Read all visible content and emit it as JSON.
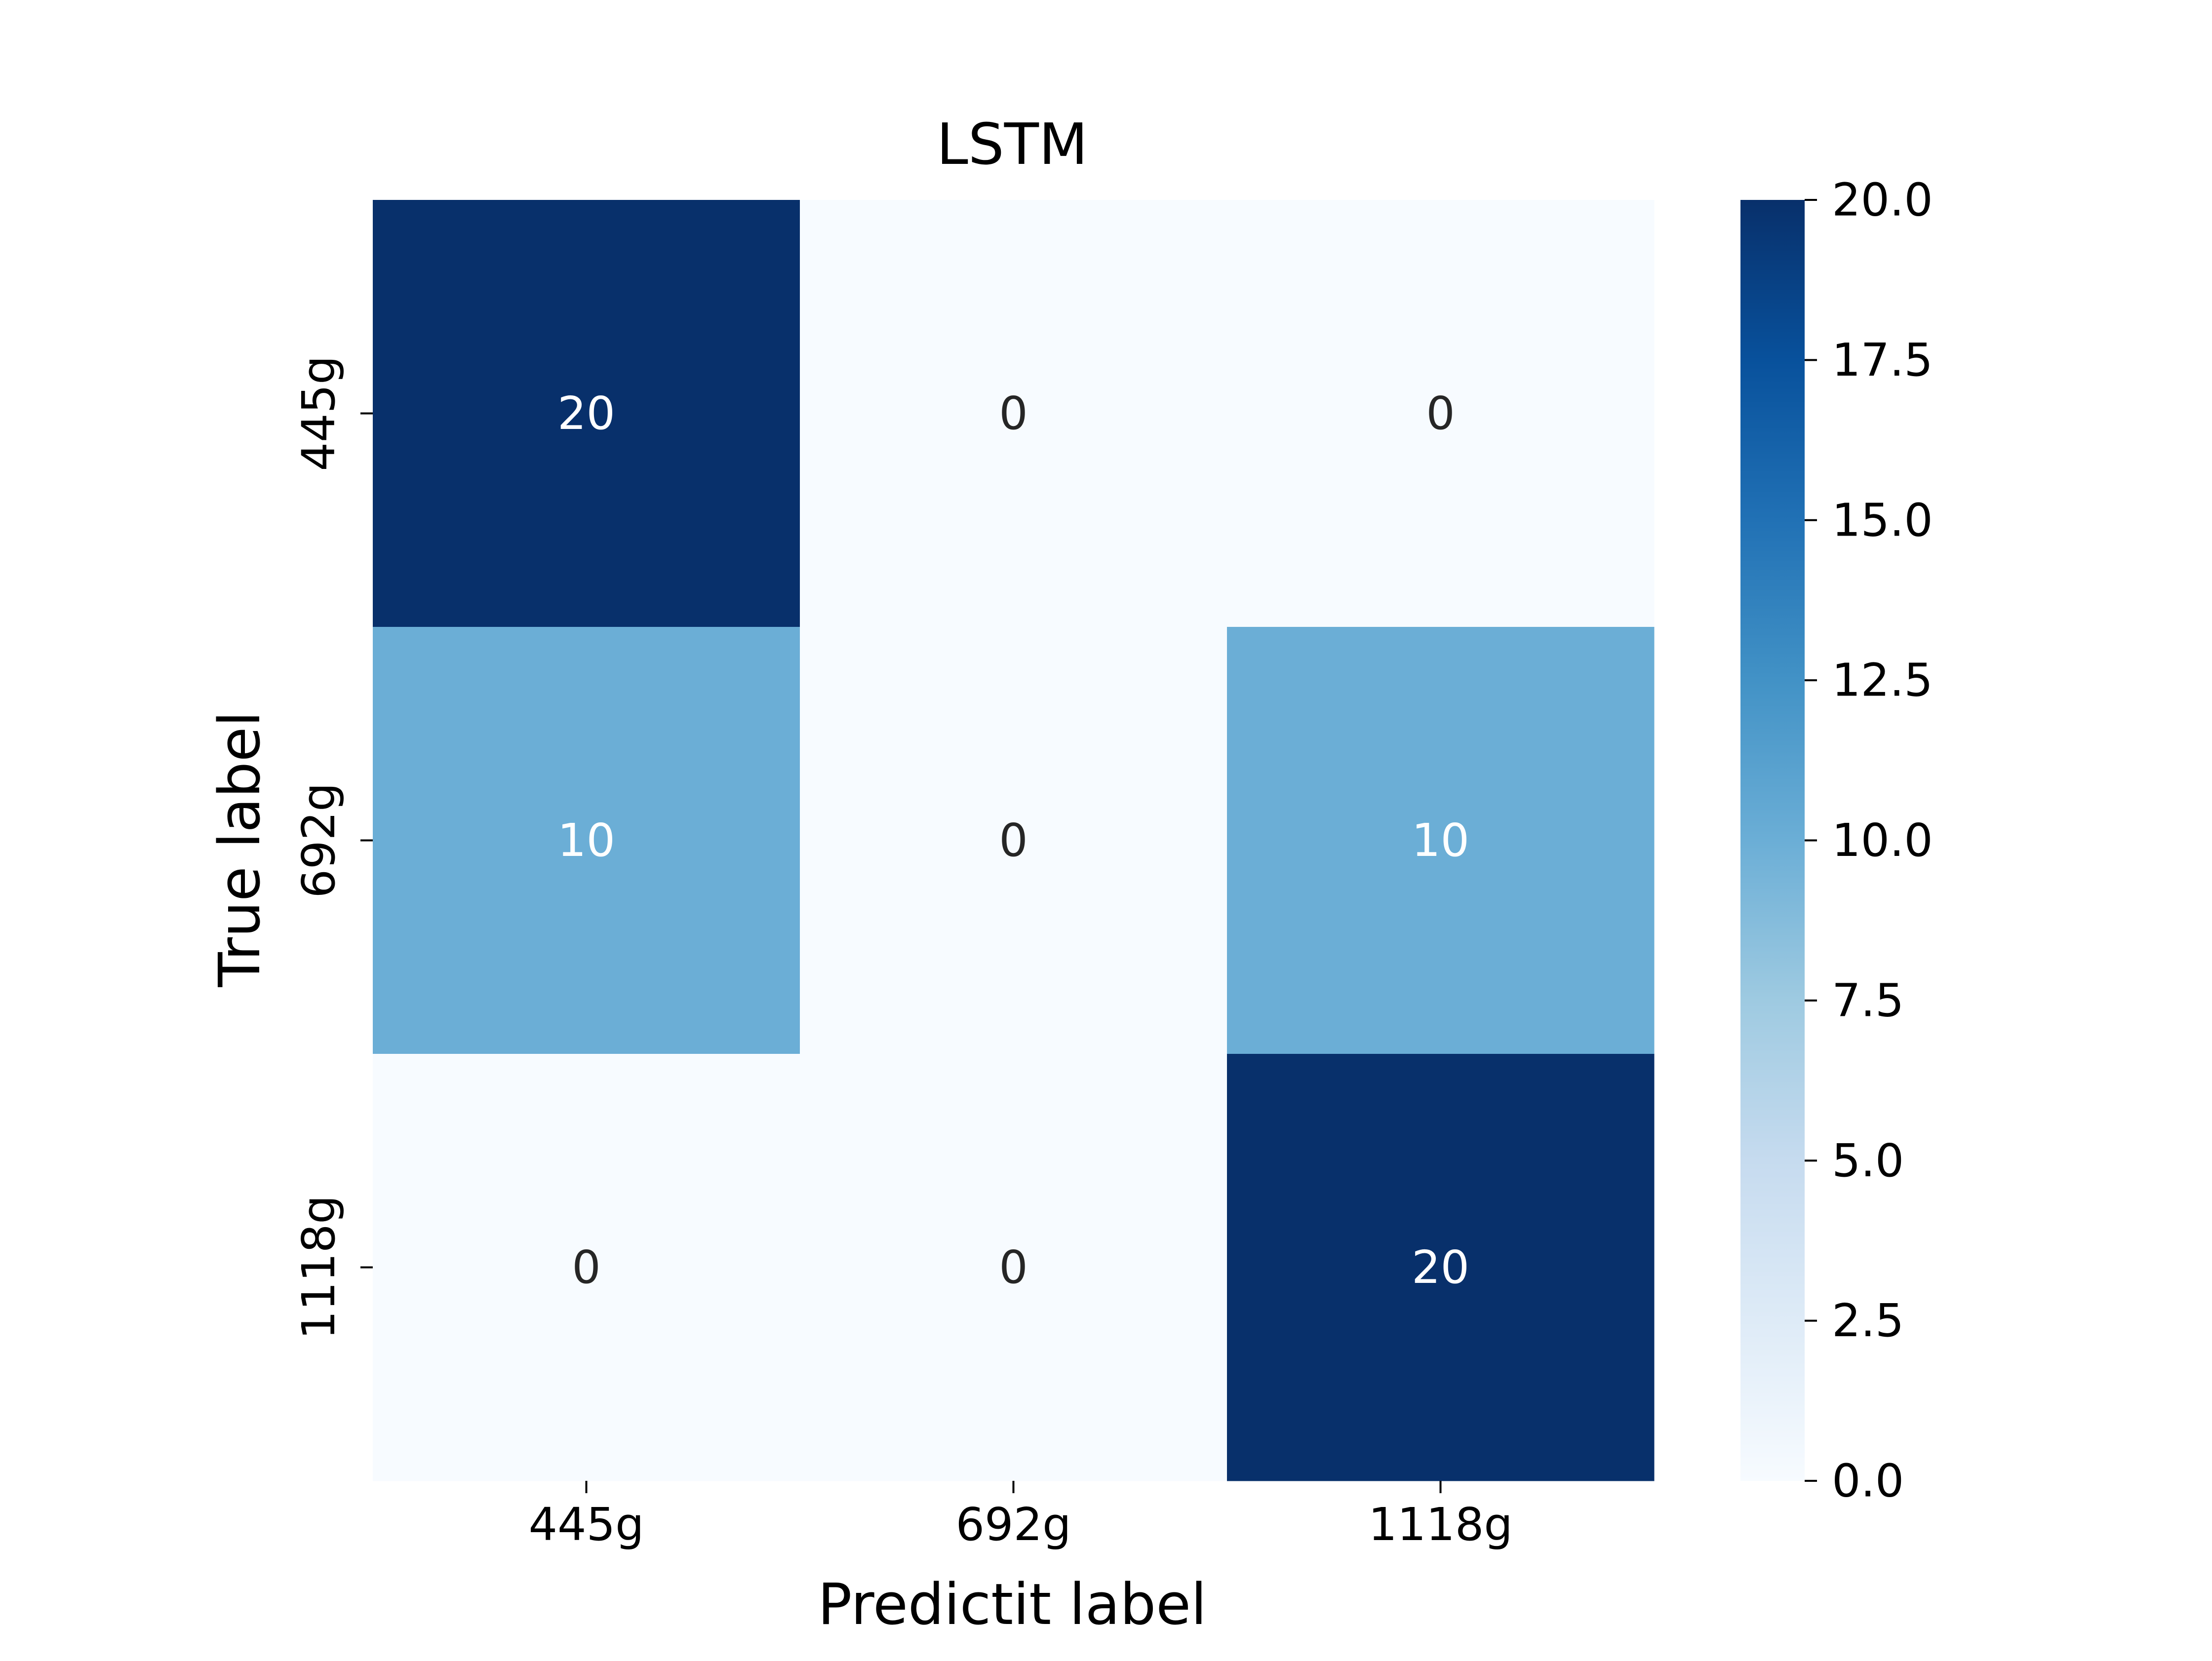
{
  "chart_data": {
    "type": "heatmap",
    "title": "LSTM",
    "xlabel": "Predictit label",
    "ylabel": "True label",
    "x_categories": [
      "445g",
      "692g",
      "1118g"
    ],
    "y_categories": [
      "445g",
      "692g",
      "1118g"
    ],
    "values": [
      [
        20,
        0,
        0
      ],
      [
        10,
        0,
        10
      ],
      [
        0,
        0,
        20
      ]
    ],
    "colormap": "Blues",
    "color_range": [
      0,
      20
    ],
    "colorbar_ticks": [
      "0.0",
      "2.5",
      "5.0",
      "7.5",
      "10.0",
      "12.5",
      "15.0",
      "17.5",
      "20.0"
    ],
    "colors": {
      "low": "#f7fbff",
      "high": "#08306b",
      "text_dark": "#262626",
      "text_light": "#ffffff"
    }
  }
}
